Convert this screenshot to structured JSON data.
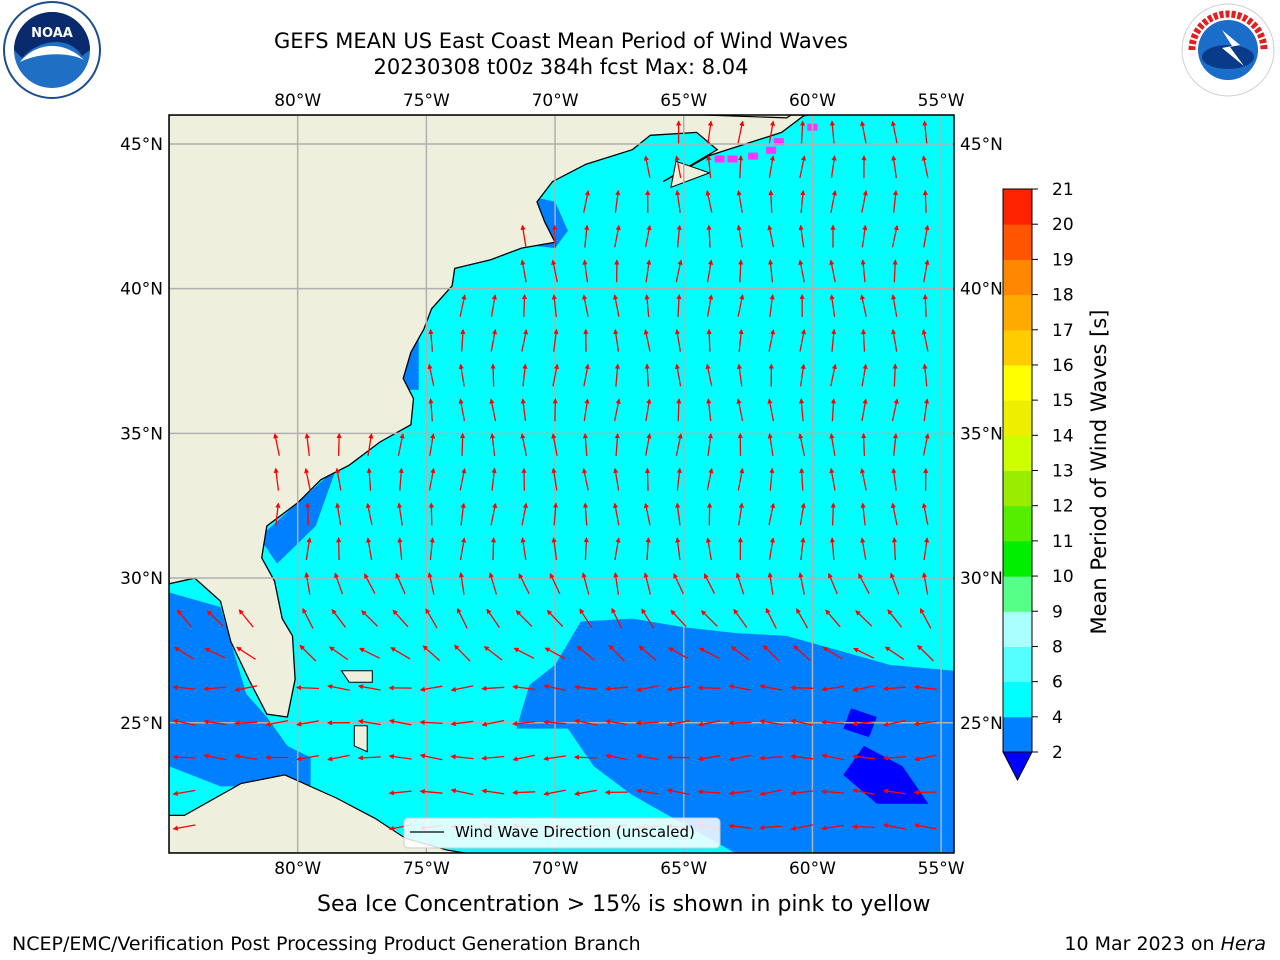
{
  "header": {
    "title_line1": "GEFS MEAN US East Coast Mean Period of Wind Waves",
    "title_line2": "20230308 t00z 384h fcst   Max: 8.04"
  },
  "logos": {
    "left": {
      "icon": "noaa-logo-icon",
      "text": "NOAA"
    },
    "right": {
      "icon": "nws-logo-icon",
      "text": "NATIONAL WEATHER SERVICE"
    }
  },
  "map": {
    "lon_range": [
      -85,
      -54.5
    ],
    "lat_range": [
      20.5,
      46
    ],
    "lon_ticks": [
      -80,
      -75,
      -70,
      -65,
      -60,
      -55
    ],
    "lat_ticks": [
      25,
      30,
      35,
      40,
      45
    ],
    "lon_tick_labels": [
      "80°W",
      "75°W",
      "70°W",
      "65°W",
      "60°W",
      "55°W"
    ],
    "lat_tick_labels": [
      "25°N",
      "30°N",
      "35°N",
      "40°N",
      "45°N"
    ],
    "grid": true,
    "legend": {
      "label": "Wind Wave Direction (unscaled)",
      "placement": "lower-center"
    },
    "colors": {
      "land": "#efefdd",
      "ocean_4_6": "#00ffff",
      "ocean_2_4": "#0080ff",
      "arrow": "#ff0000",
      "ice": "#ff33ff",
      "grid": "#b0b0b0"
    }
  },
  "colorbar": {
    "label": "Mean Period of Wind Waves [s]",
    "ticks": [
      "2",
      "4",
      "6",
      "8",
      "9",
      "10",
      "11",
      "12",
      "13",
      "14",
      "15",
      "16",
      "17",
      "18",
      "19",
      "20",
      "21"
    ],
    "colors": [
      "#0000ff",
      "#0080ff",
      "#00ffff",
      "#55ffff",
      "#aaffff",
      "#55ff88",
      "#00ee00",
      "#55ee00",
      "#99ee00",
      "#ccff00",
      "#eeee00",
      "#ffff00",
      "#ffcc00",
      "#ffaa00",
      "#ff8800",
      "#ff5500",
      "#ff2200",
      "#ff0000"
    ]
  },
  "caption": "Sea Ice Concentration > 15% is shown in pink to yellow",
  "footer": {
    "left": "NCEP/EMC/Verification Post Processing Product Generation Branch",
    "right_date": "10 Mar 2023 on ",
    "right_host": "Hera"
  }
}
